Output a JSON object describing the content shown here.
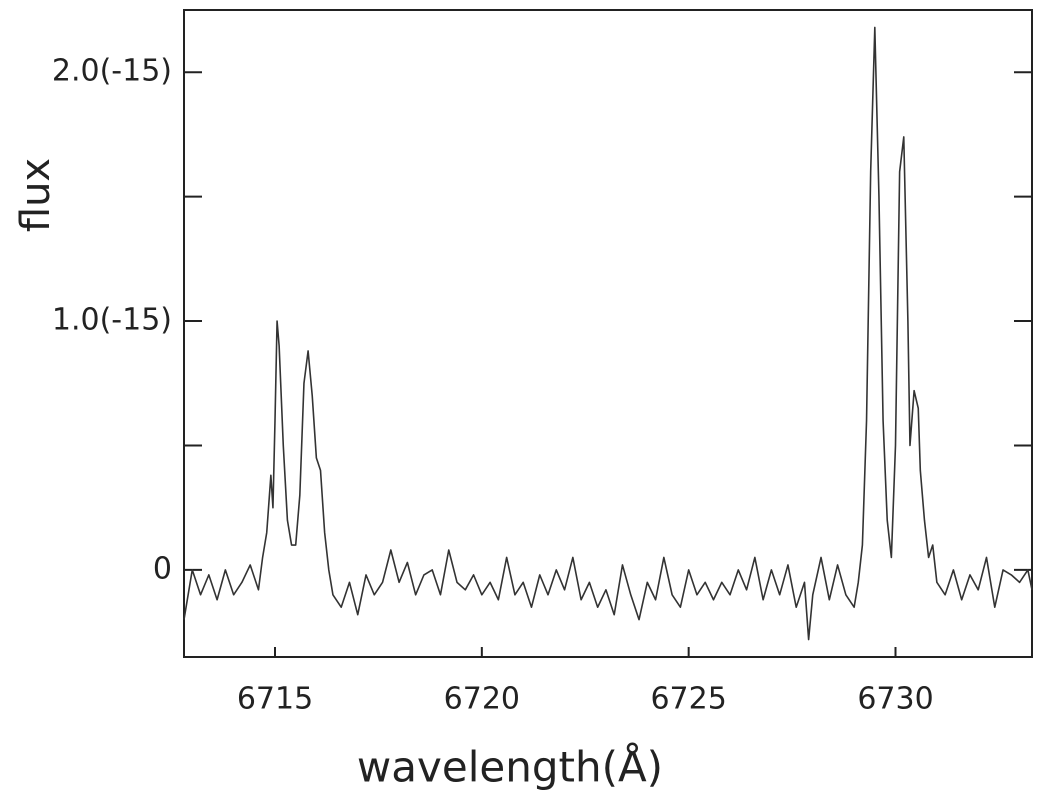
{
  "chart_data": {
    "type": "line",
    "xlabel": "wavelength(Å)",
    "ylabel": "flux",
    "xlim": [
      6712.8,
      6733.3
    ],
    "xticks": [
      6715,
      6720,
      6725,
      6730
    ],
    "ylim": [
      -3.5e-16,
      2.25e-15
    ],
    "yticks": [
      0,
      {
        "value": 1e-15,
        "label": "1.0(-15)"
      },
      {
        "value": 2e-15,
        "label": "2.0(-15)"
      }
    ],
    "yminorticks": [
      5e-16,
      1.5e-15
    ],
    "series": [
      {
        "color": "#333333",
        "x": [
          6712.8,
          6713.0,
          6713.2,
          6713.4,
          6713.6,
          6713.8,
          6714.0,
          6714.2,
          6714.4,
          6714.6,
          6714.7,
          6714.8,
          6714.9,
          6714.95,
          6715.0,
          6715.05,
          6715.1,
          6715.2,
          6715.3,
          6715.4,
          6715.5,
          6715.6,
          6715.7,
          6715.8,
          6715.9,
          6716.0,
          6716.1,
          6716.2,
          6716.3,
          6716.4,
          6716.6,
          6716.8,
          6717.0,
          6717.2,
          6717.4,
          6717.6,
          6717.8,
          6718.0,
          6718.2,
          6718.4,
          6718.6,
          6718.8,
          6719.0,
          6719.2,
          6719.4,
          6719.6,
          6719.8,
          6720.0,
          6720.2,
          6720.4,
          6720.6,
          6720.8,
          6721.0,
          6721.2,
          6721.4,
          6721.6,
          6721.8,
          6722.0,
          6722.2,
          6722.4,
          6722.6,
          6722.8,
          6723.0,
          6723.2,
          6723.4,
          6723.6,
          6723.8,
          6724.0,
          6724.2,
          6724.4,
          6724.6,
          6724.8,
          6725.0,
          6725.2,
          6725.4,
          6725.6,
          6725.8,
          6726.0,
          6726.2,
          6726.4,
          6726.6,
          6726.8,
          6727.0,
          6727.2,
          6727.4,
          6727.6,
          6727.8,
          6727.9,
          6728.0,
          6728.2,
          6728.4,
          6728.6,
          6728.8,
          6729.0,
          6729.1,
          6729.2,
          6729.3,
          6729.4,
          6729.5,
          6729.6,
          6729.7,
          6729.8,
          6729.9,
          6730.0,
          6730.1,
          6730.2,
          6730.3,
          6730.35,
          6730.45,
          6730.55,
          6730.6,
          6730.7,
          6730.8,
          6730.9,
          6731.0,
          6731.2,
          6731.4,
          6731.6,
          6731.8,
          6732.0,
          6732.2,
          6732.4,
          6732.6,
          6732.8,
          6733.0,
          6733.2,
          6733.3
        ],
        "values": [
          -2e-16,
          0.0,
          -1e-16,
          -2e-17,
          -1.2e-16,
          0.0,
          -1e-16,
          -5e-17,
          2e-17,
          -8e-17,
          5e-17,
          1.5e-16,
          3.8e-16,
          2.5e-16,
          6e-16,
          1e-15,
          9e-16,
          5e-16,
          2e-16,
          1e-16,
          1e-16,
          3e-16,
          7.5e-16,
          8.8e-16,
          7e-16,
          4.5e-16,
          4e-16,
          1.5e-16,
          0.0,
          -1e-16,
          -1.5e-16,
          -5e-17,
          -1.8e-16,
          -2e-17,
          -1e-16,
          -5e-17,
          8e-17,
          -5e-17,
          3e-17,
          -1e-16,
          -2e-17,
          0.0,
          -1e-16,
          8e-17,
          -5e-17,
          -8e-17,
          -2e-17,
          -1e-16,
          -5e-17,
          -1.2e-16,
          5e-17,
          -1e-16,
          -5e-17,
          -1.5e-16,
          -2e-17,
          -1e-16,
          0.0,
          -8e-17,
          5e-17,
          -1.2e-16,
          -5e-17,
          -1.5e-16,
          -8e-17,
          -1.8e-16,
          2e-17,
          -1e-16,
          -2e-16,
          -5e-17,
          -1.2e-16,
          5e-17,
          -1e-16,
          -1.5e-16,
          0.0,
          -1e-16,
          -5e-17,
          -1.2e-16,
          -5e-17,
          -1e-16,
          0.0,
          -8e-17,
          5e-17,
          -1.2e-16,
          0.0,
          -1e-16,
          2e-17,
          -1.5e-16,
          -5e-17,
          -2.8e-16,
          -1e-16,
          5e-17,
          -1.2e-16,
          2e-17,
          -1e-16,
          -1.5e-16,
          -5e-17,
          1e-16,
          6e-16,
          1.6e-15,
          2.18e-15,
          1.5e-15,
          6e-16,
          2e-16,
          5e-17,
          5e-16,
          1.6e-15,
          1.74e-15,
          1e-15,
          5e-16,
          7.2e-16,
          6.5e-16,
          4e-16,
          2e-16,
          5e-17,
          1e-16,
          -5e-17,
          -1e-16,
          0.0,
          -1.2e-16,
          -2e-17,
          -8e-17,
          5e-17,
          -1.5e-16,
          0.0,
          -2e-17,
          -5e-17,
          0.0,
          -8e-17
        ]
      }
    ]
  }
}
